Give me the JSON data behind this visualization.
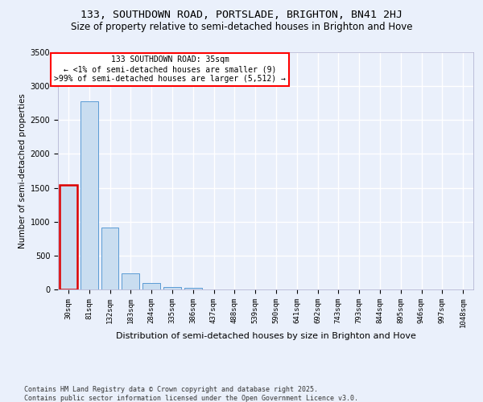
{
  "title": "133, SOUTHDOWN ROAD, PORTSLADE, BRIGHTON, BN41 2HJ",
  "subtitle": "Size of property relative to semi-detached houses in Brighton and Hove",
  "xlabel": "Distribution of semi-detached houses by size in Brighton and Hove",
  "ylabel": "Number of semi-detached properties",
  "categories": [
    "30sqm",
    "81sqm",
    "132sqm",
    "183sqm",
    "284sqm",
    "335sqm",
    "386sqm",
    "437sqm",
    "488sqm",
    "539sqm",
    "590sqm",
    "641sqm",
    "692sqm",
    "743sqm",
    "793sqm",
    "844sqm",
    "895sqm",
    "946sqm",
    "997sqm",
    "1048sqm"
  ],
  "values": [
    1540,
    2780,
    910,
    240,
    100,
    40,
    18,
    3,
    0,
    0,
    0,
    0,
    0,
    0,
    0,
    0,
    0,
    0,
    0,
    0
  ],
  "bar_color": "#c9ddf0",
  "bar_edge_color": "#5b9bd5",
  "highlight_edge_color": "#dd0000",
  "annotation_text": "133 SOUTHDOWN ROAD: 35sqm\n← <1% of semi-detached houses are smaller (9)\n>99% of semi-detached houses are larger (5,512) →",
  "property_bar_index": 0,
  "ylim": [
    0,
    3500
  ],
  "yticks": [
    0,
    500,
    1000,
    1500,
    2000,
    2500,
    3000,
    3500
  ],
  "bg_color": "#eaf0fb",
  "grid_color": "#ffffff",
  "footer": "Contains HM Land Registry data © Crown copyright and database right 2025.\nContains public sector information licensed under the Open Government Licence v3.0.",
  "title_fontsize": 9.5,
  "subtitle_fontsize": 8.5,
  "xlabel_fontsize": 8,
  "ylabel_fontsize": 7.5,
  "tick_fontsize": 6.5,
  "footer_fontsize": 6,
  "ann_fontsize": 7
}
